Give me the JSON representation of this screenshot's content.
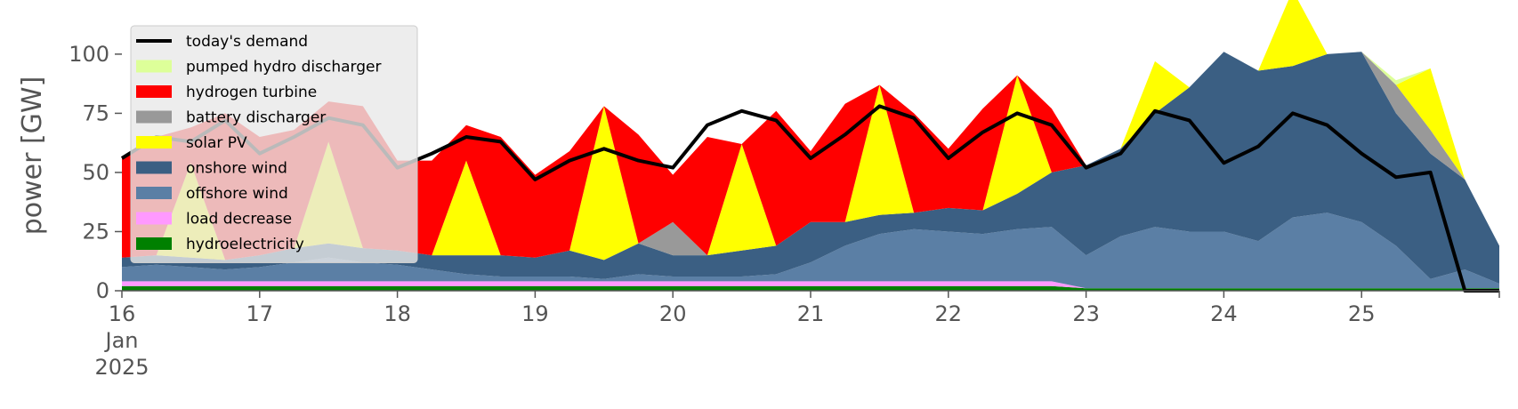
{
  "chart_data": {
    "type": "area",
    "xlabel": "",
    "ylabel": "power [GW]",
    "ylim": [
      0,
      118
    ],
    "xlim": [
      "2025-01-16T00:00",
      "2025-01-26T00:00"
    ],
    "x_ticks": [
      {
        "date": "2025-01-16",
        "label": "16",
        "sub1": "Jan",
        "sub2": "2025"
      },
      {
        "date": "2025-01-17",
        "label": "17"
      },
      {
        "date": "2025-01-18",
        "label": "18"
      },
      {
        "date": "2025-01-19",
        "label": "19"
      },
      {
        "date": "2025-01-20",
        "label": "20"
      },
      {
        "date": "2025-01-21",
        "label": "21"
      },
      {
        "date": "2025-01-22",
        "label": "22"
      },
      {
        "date": "2025-01-23",
        "label": "23"
      },
      {
        "date": "2025-01-24",
        "label": "24"
      },
      {
        "date": "2025-01-25",
        "label": "25"
      }
    ],
    "y_ticks": [
      0,
      25,
      50,
      75,
      100
    ],
    "grid": false,
    "legend_position": "top-left",
    "x": [
      "2025-01-16T00:00",
      "2025-01-16T06:00",
      "2025-01-16T12:00",
      "2025-01-16T18:00",
      "2025-01-17T00:00",
      "2025-01-17T06:00",
      "2025-01-17T12:00",
      "2025-01-17T18:00",
      "2025-01-18T00:00",
      "2025-01-18T06:00",
      "2025-01-18T12:00",
      "2025-01-18T18:00",
      "2025-01-19T00:00",
      "2025-01-19T06:00",
      "2025-01-19T12:00",
      "2025-01-19T18:00",
      "2025-01-20T00:00",
      "2025-01-20T06:00",
      "2025-01-20T12:00",
      "2025-01-20T18:00",
      "2025-01-21T00:00",
      "2025-01-21T06:00",
      "2025-01-21T12:00",
      "2025-01-21T18:00",
      "2025-01-22T00:00",
      "2025-01-22T06:00",
      "2025-01-22T12:00",
      "2025-01-22T18:00",
      "2025-01-23T00:00",
      "2025-01-23T06:00",
      "2025-01-23T12:00",
      "2025-01-23T18:00",
      "2025-01-24T00:00",
      "2025-01-24T06:00",
      "2025-01-24T12:00",
      "2025-01-24T18:00",
      "2025-01-25T00:00",
      "2025-01-25T06:00",
      "2025-01-25T12:00",
      "2025-01-25T18:00",
      "2025-01-26T00:00"
    ],
    "series": [
      {
        "name": "hydroelectricity",
        "color": "#008000",
        "values": [
          2,
          2,
          2,
          2,
          2,
          2,
          2,
          2,
          2,
          2,
          2,
          2,
          2,
          2,
          2,
          2,
          2,
          2,
          2,
          2,
          2,
          2,
          2,
          2,
          2,
          2,
          2,
          2,
          1,
          1,
          1,
          1,
          1,
          1,
          1,
          1,
          1,
          1,
          1,
          1,
          1
        ]
      },
      {
        "name": "load decrease",
        "color": "#ff99ff",
        "values": [
          2,
          2,
          2,
          2,
          2,
          2,
          2,
          2,
          2,
          2,
          2,
          2,
          2,
          2,
          2,
          2,
          2,
          2,
          2,
          2,
          2,
          2,
          2,
          2,
          2,
          2,
          2,
          2,
          0,
          0,
          0,
          0,
          0,
          0,
          0,
          0,
          0,
          0,
          0,
          0,
          0
        ]
      },
      {
        "name": "offshore wind",
        "color": "#5b7fa5",
        "values": [
          6,
          7,
          6,
          5,
          6,
          8,
          10,
          8,
          7,
          5,
          3,
          2,
          2,
          2,
          1,
          3,
          2,
          2,
          2,
          3,
          8,
          15,
          20,
          22,
          21,
          20,
          22,
          23,
          14,
          22,
          26,
          24,
          24,
          20,
          30,
          32,
          28,
          18,
          4,
          8,
          2
        ]
      },
      {
        "name": "onshore wind",
        "color": "#3b5f83",
        "values": [
          4,
          4,
          4,
          4,
          5,
          6,
          6,
          6,
          6,
          6,
          8,
          9,
          8,
          11,
          8,
          13,
          9,
          9,
          11,
          12,
          17,
          10,
          8,
          7,
          10,
          10,
          15,
          23,
          38,
          37,
          48,
          61,
          76,
          72,
          64,
          67,
          72,
          56,
          53,
          38,
          16
        ]
      },
      {
        "name": "battery discharger",
        "color": "#999999",
        "values": [
          0,
          0,
          0,
          0,
          0,
          0,
          0,
          0,
          0,
          0,
          0,
          0,
          0,
          0,
          0,
          0,
          14,
          0,
          0,
          0,
          0,
          0,
          0,
          0,
          0,
          0,
          0,
          0,
          0,
          0,
          0,
          0,
          0,
          0,
          0,
          0,
          0,
          12,
          10,
          0,
          0
        ]
      },
      {
        "name": "solar PV",
        "color": "#ffff00",
        "values": [
          0,
          0,
          40,
          0,
          0,
          0,
          43,
          0,
          0,
          0,
          40,
          0,
          0,
          0,
          65,
          0,
          0,
          0,
          45,
          0,
          0,
          0,
          55,
          0,
          0,
          0,
          50,
          0,
          0,
          0,
          22,
          0,
          0,
          0,
          32,
          0,
          0,
          0,
          26,
          0,
          0
        ]
      },
      {
        "name": "hydrogen turbine",
        "color": "#ff0000",
        "values": [
          42,
          50,
          15,
          62,
          50,
          50,
          17,
          60,
          38,
          40,
          15,
          50,
          35,
          42,
          0,
          46,
          20,
          50,
          0,
          57,
          30,
          50,
          0,
          42,
          25,
          43,
          0,
          27,
          0,
          0,
          0,
          0,
          0,
          0,
          0,
          0,
          0,
          0,
          0,
          0,
          0
        ]
      },
      {
        "name": "pumped hydro discharger",
        "color": "#ddff99",
        "values": [
          0,
          0,
          0,
          0,
          0,
          0,
          0,
          0,
          0,
          0,
          0,
          0,
          0,
          0,
          0,
          0,
          0,
          0,
          0,
          0,
          0,
          0,
          0,
          0,
          0,
          0,
          0,
          0,
          0,
          0,
          0,
          0,
          0,
          0,
          0,
          0,
          0,
          2,
          0,
          0,
          0
        ]
      }
    ],
    "demand": {
      "name": "today's demand",
      "color": "#000000",
      "values": [
        56,
        65,
        63,
        72,
        58,
        65,
        73,
        70,
        52,
        58,
        65,
        63,
        47,
        55,
        60,
        55,
        52,
        70,
        76,
        72,
        56,
        66,
        78,
        73,
        56,
        67,
        75,
        70,
        52,
        58,
        76,
        72,
        54,
        61,
        75,
        70,
        58,
        48,
        50,
        0,
        0
      ]
    },
    "legend": [
      {
        "label": "today's demand",
        "kind": "line",
        "color": "#000000"
      },
      {
        "label": "pumped hydro discharger",
        "kind": "patch",
        "color": "#ddff99"
      },
      {
        "label": "hydrogen turbine",
        "kind": "patch",
        "color": "#ff0000"
      },
      {
        "label": "battery discharger",
        "kind": "patch",
        "color": "#999999"
      },
      {
        "label": "solar PV",
        "kind": "patch",
        "color": "#ffff00"
      },
      {
        "label": "onshore wind",
        "kind": "patch",
        "color": "#3b5f83"
      },
      {
        "label": "offshore wind",
        "kind": "patch",
        "color": "#5b7fa5"
      },
      {
        "label": "load decrease",
        "kind": "patch",
        "color": "#ff99ff"
      },
      {
        "label": "hydroelectricity",
        "kind": "patch",
        "color": "#008000"
      }
    ]
  }
}
